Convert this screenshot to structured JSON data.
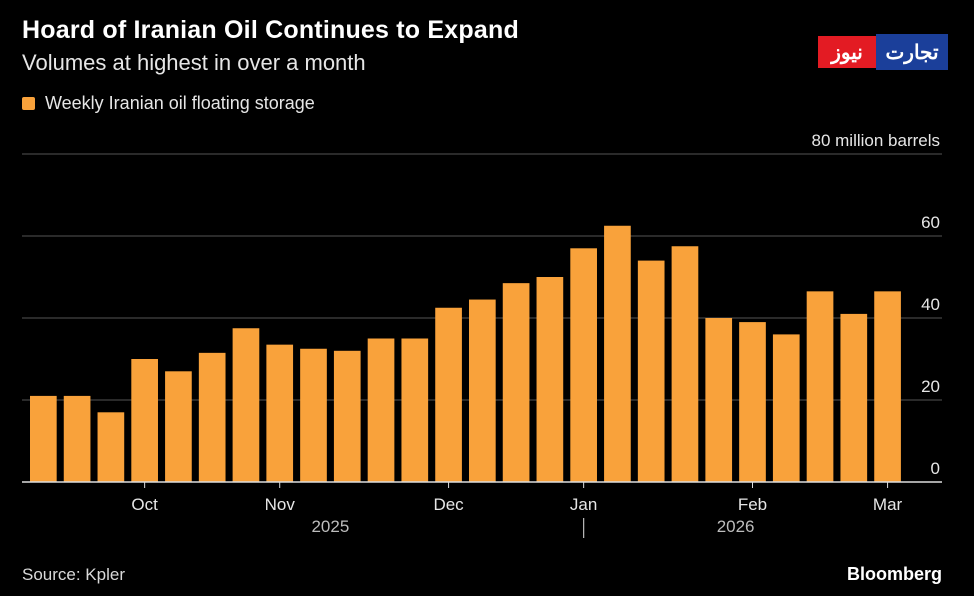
{
  "header": {
    "title": "Hoard of Iranian Oil Continues to Expand",
    "subtitle": "Volumes at highest in over a month"
  },
  "logo": {
    "left_text": "نیوز",
    "right_text": "تجارت"
  },
  "colors": {
    "bar": "#f9a23b",
    "background": "#000000",
    "grid": "#555555",
    "text": "#e6e6e6"
  },
  "footer": {
    "source": "Source: Kpler",
    "brand": "Bloomberg"
  },
  "chart_data": {
    "type": "bar",
    "title": "Hoard of Iranian Oil Continues to Expand",
    "subtitle": "Volumes at highest in over a month",
    "series": [
      {
        "name": "Weekly Iranian oil floating storage",
        "values": [
          21,
          21,
          17,
          30,
          27,
          31.5,
          37.5,
          33.5,
          32.5,
          32,
          35,
          35,
          42.5,
          44.5,
          48.5,
          50,
          57,
          62.5,
          54,
          57.5,
          40,
          39,
          36,
          46.5,
          41,
          46.5
        ]
      }
    ],
    "x_dates": [
      "2025-09-15",
      "2025-09-22",
      "2025-09-29",
      "2025-10-06",
      "2025-10-13",
      "2025-10-20",
      "2025-10-27",
      "2025-11-03",
      "2025-11-10",
      "2025-11-17",
      "2025-11-24",
      "2025-12-01",
      "2025-12-08",
      "2025-12-15",
      "2025-12-22",
      "2025-12-29",
      "2026-01-05",
      "2026-01-12",
      "2026-01-19",
      "2026-01-26",
      "2026-02-02",
      "2026-02-09",
      "2026-02-16",
      "2026-02-23",
      "2026-03-02",
      "2026-03-09"
    ],
    "x_tick_labels": [
      {
        "label": "Oct",
        "at_bar": 3
      },
      {
        "label": "Nov",
        "at_bar": 7
      },
      {
        "label": "Dec",
        "at_bar": 12
      },
      {
        "label": "Jan",
        "at_bar": 16
      },
      {
        "label": "Feb",
        "at_bar": 21
      },
      {
        "label": "Mar",
        "at_bar": 25
      }
    ],
    "year_labels": [
      {
        "label": "2025",
        "at_bar": 8.5
      },
      {
        "label": "2026",
        "at_bar": 20.5
      }
    ],
    "year_divider_at_bar": 16,
    "y_ticks": [
      0,
      20,
      40,
      60,
      80
    ],
    "y_tick_labels": [
      "0",
      "20",
      "40",
      "60",
      "80 million barrels"
    ],
    "ylim": [
      0,
      80
    ],
    "grid": true,
    "legend_position": "top-left"
  }
}
